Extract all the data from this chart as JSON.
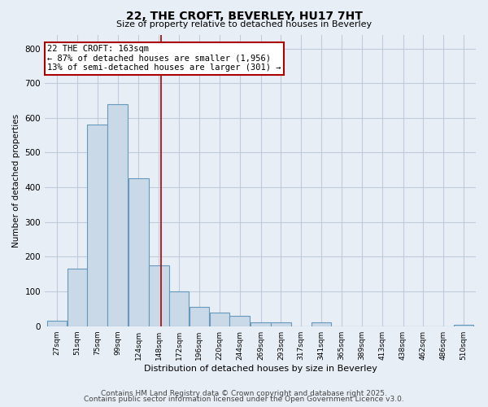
{
  "title_line1": "22, THE CROFT, BEVERLEY, HU17 7HT",
  "title_line2": "Size of property relative to detached houses in Beverley",
  "xlabel": "Distribution of detached houses by size in Beverley",
  "ylabel": "Number of detached properties",
  "bar_edges": [
    27,
    51,
    75,
    99,
    124,
    148,
    172,
    196,
    220,
    244,
    269,
    293,
    317,
    341,
    365,
    389,
    413,
    438,
    462,
    486,
    510
  ],
  "bar_heights": [
    15,
    165,
    580,
    640,
    425,
    175,
    100,
    55,
    40,
    30,
    12,
    10,
    0,
    10,
    0,
    0,
    0,
    0,
    0,
    0,
    5
  ],
  "bar_color": "#c9d9e8",
  "bar_edge_color": "#6699bb",
  "bar_linewidth": 0.8,
  "vline_x": 163,
  "vline_color": "#aa0000",
  "vline_linewidth": 1.2,
  "annotation_text": "22 THE CROFT: 163sqm\n← 87% of detached houses are smaller (1,956)\n13% of semi-detached houses are larger (301) →",
  "annotation_box_color": "#aa0000",
  "annotation_fill": "white",
  "annotation_fontsize": 7.5,
  "ylim": [
    0,
    840
  ],
  "yticks": [
    0,
    100,
    200,
    300,
    400,
    500,
    600,
    700,
    800
  ],
  "tick_labels": [
    "27sqm",
    "51sqm",
    "75sqm",
    "99sqm",
    "124sqm",
    "148sqm",
    "172sqm",
    "196sqm",
    "220sqm",
    "244sqm",
    "269sqm",
    "293sqm",
    "317sqm",
    "341sqm",
    "365sqm",
    "389sqm",
    "413sqm",
    "438sqm",
    "462sqm",
    "486sqm",
    "510sqm"
  ],
  "grid_color": "#c0ccdd",
  "bg_color": "#e8eef5",
  "footer_line1": "Contains HM Land Registry data © Crown copyright and database right 2025.",
  "footer_line2": "Contains public sector information licensed under the Open Government Licence v3.0.",
  "footer_fontsize": 6.5,
  "title1_fontsize": 10,
  "title2_fontsize": 8,
  "ylabel_fontsize": 7.5,
  "xlabel_fontsize": 8
}
